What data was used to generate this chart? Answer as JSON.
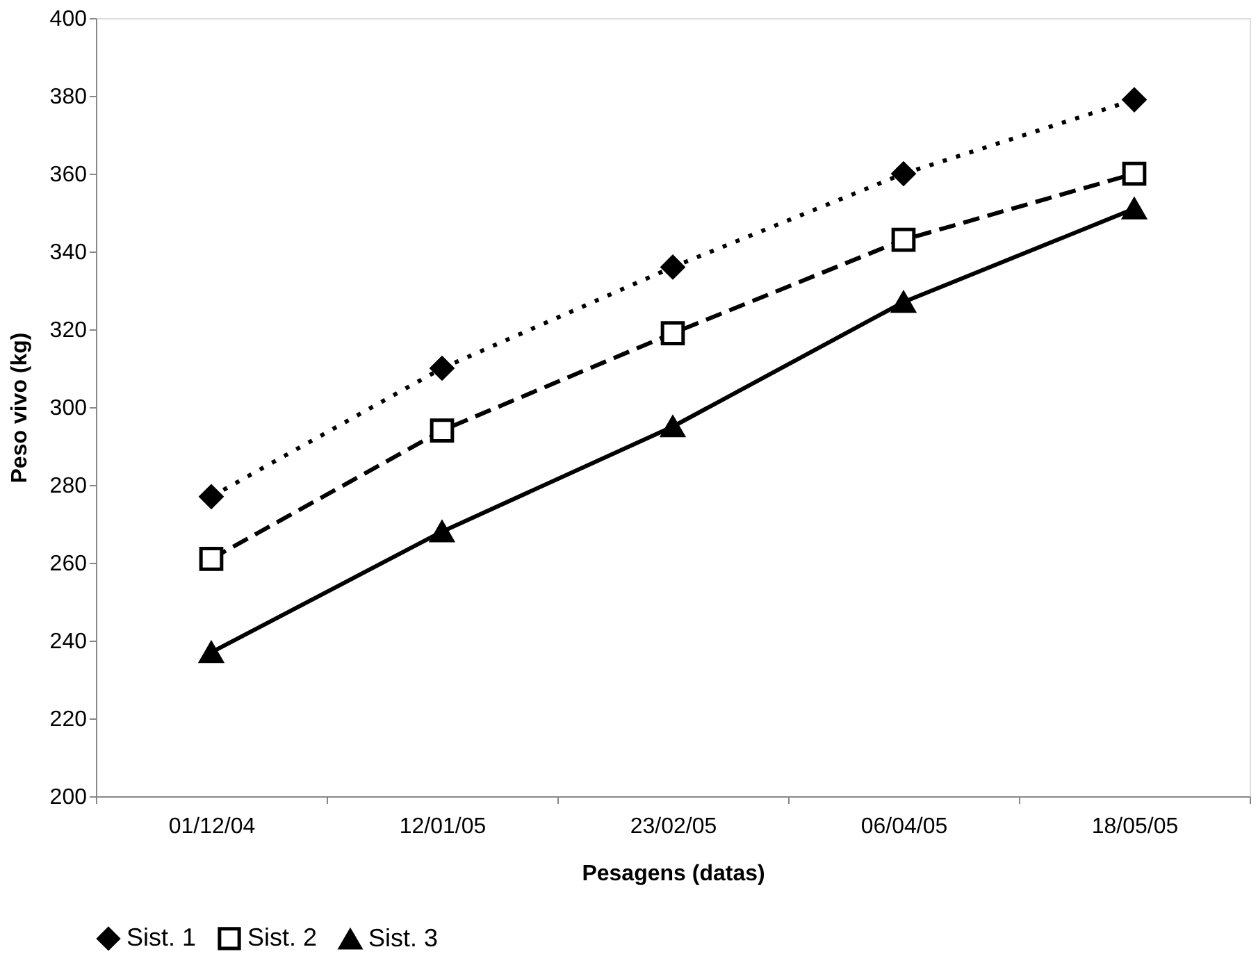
{
  "chart_data": {
    "type": "line",
    "xlabel": "Pesagens (datas)",
    "ylabel": "Peso vivo (kg)",
    "categories": [
      "01/12/04",
      "12/01/05",
      "23/02/05",
      "06/04/05",
      "18/05/05"
    ],
    "series": [
      {
        "name": "Sist. 1",
        "color": "#000000",
        "marker": "diamond",
        "line_style": "dotted",
        "values": [
          277,
          310,
          336,
          360,
          379
        ]
      },
      {
        "name": "Sist. 2",
        "color": "#000000",
        "marker": "square",
        "line_style": "dashed",
        "values": [
          261,
          294,
          319,
          343,
          360
        ]
      },
      {
        "name": "Sist. 3",
        "color": "#000000",
        "marker": "triangle",
        "line_style": "solid",
        "values": [
          237,
          268,
          295,
          327,
          351
        ]
      }
    ],
    "ylim": [
      200,
      400
    ],
    "yticks": [
      200,
      220,
      240,
      260,
      280,
      300,
      320,
      340,
      360,
      380,
      400
    ],
    "grid": false,
    "legend": "bottom"
  }
}
